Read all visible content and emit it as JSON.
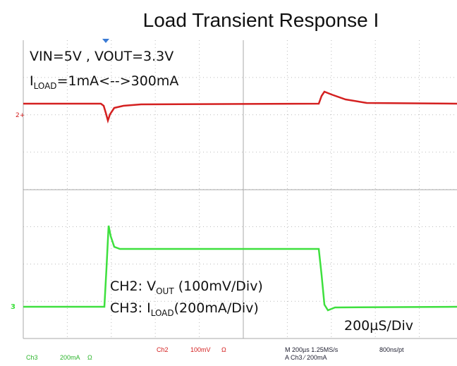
{
  "title": "Load Transient Response I",
  "annotations": {
    "line1": "VIN=5V , VOUT=3.3V",
    "line2": {
      "main": "I",
      "sub": "LOAD",
      "rest": "=1mA<-->300mA"
    },
    "ch2": {
      "main": "CH2: V",
      "sub": "OUT",
      "rest": " (100mV/Div)"
    },
    "ch3": {
      "main": "CH3:  I",
      "sub": "LOAD",
      "rest": "(200mA/Div)"
    },
    "timebase": "200µS/Div"
  },
  "markers": {
    "ch2": "2+",
    "ch3": "3"
  },
  "footer": {
    "ch3": "Ch3",
    "ch3_scale": "200mA",
    "ch3_imp": "Ω",
    "ch2": "Ch2",
    "ch2_scale": "100mV",
    "ch2_imp": "Ω",
    "horizontal": "M 200µs 1.25MS/s",
    "record": "800ns/pt",
    "trigger": "A Ch3 ⁄ 200mA"
  }
}
